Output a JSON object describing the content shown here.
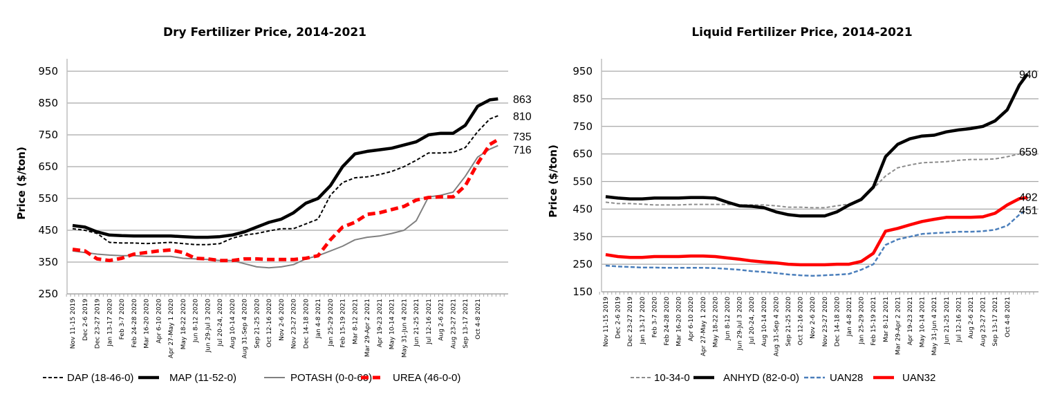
{
  "chart_data": [
    {
      "type": "line",
      "title": "Dry Fertilizer Price, 2014-2021",
      "xlabel": "",
      "ylabel": "Price ($/ton)",
      "ylim": [
        250,
        950
      ],
      "yticks": [
        250,
        350,
        450,
        550,
        650,
        750,
        850,
        950
      ],
      "grid": true,
      "legend_position": "bottom",
      "x_weeks": [
        0,
        3,
        6,
        9,
        12,
        15,
        18,
        21,
        24,
        27,
        30,
        33,
        36,
        39,
        42,
        45,
        48,
        51,
        54,
        57,
        60,
        63,
        66,
        69,
        72,
        75,
        78,
        81,
        84,
        87,
        90,
        93,
        96,
        99,
        102,
        104
      ],
      "xlim_weeks": [
        0,
        108
      ],
      "tick_weeks": [
        0,
        3,
        6,
        9,
        12,
        15,
        18,
        21,
        24,
        27,
        30,
        33,
        36,
        39,
        42,
        45,
        48,
        51,
        54,
        57,
        60,
        63,
        66,
        69,
        72,
        75,
        78,
        81,
        84,
        87,
        90,
        93,
        96,
        99
      ],
      "tick_labels": [
        "Nov 11-15 2019",
        "Dec 2-6 2019",
        "Dec 23-27 2019",
        "Jan 13-17 2020",
        "Feb 3-7 2020",
        "Feb 24-28 2020",
        "Mar 16-20 2020",
        "Apr 6-10 2020",
        "Apr 27-May 1 2020",
        "May 18-22 2020",
        "Jun 8-12 2020",
        "Jun 29-Jul 3 2020",
        "Jul 20-24, 2020",
        "Aug 10-14 2020",
        "Aug 31-Sep 4 2020",
        "Sep 21-25 2020",
        "Oct 12-16 2020",
        "Nov 2-6 2020",
        "Nov 23-27 2020",
        "Dec 14-18 2020",
        "Jan 4-8 2021",
        "Jan 25-29 2020",
        "Feb 15-19 2021",
        "Mar 8-12 2021",
        "Mar 29-Apr 2 2021",
        "Apr 19-23 2021",
        "May 10-14 2021",
        "May 31-Jun 4 2021",
        "Jun 21-25 2021",
        "Jul 12-16 2021",
        "Aug 2-6 2021",
        "Aug 23-27 2021",
        "Sep 13-17 2021",
        "Oct 4-8 2021"
      ],
      "series": [
        {
          "name": "DAP (18-46-0)",
          "color": "#000000",
          "style": "dashed-thin",
          "end_label": "810",
          "values": [
            455,
            450,
            440,
            412,
            410,
            410,
            408,
            410,
            412,
            408,
            405,
            405,
            408,
            425,
            435,
            440,
            448,
            455,
            455,
            470,
            485,
            560,
            600,
            615,
            618,
            625,
            635,
            650,
            670,
            693,
            693,
            695,
            710,
            760,
            800,
            810
          ]
        },
        {
          "name": "MAP (11-52-0)",
          "color": "#000000",
          "style": "solid-thick",
          "end_label": "863",
          "values": [
            465,
            460,
            445,
            435,
            433,
            432,
            432,
            432,
            432,
            430,
            428,
            428,
            430,
            435,
            445,
            460,
            475,
            485,
            505,
            535,
            550,
            590,
            650,
            690,
            698,
            703,
            708,
            718,
            728,
            750,
            755,
            755,
            780,
            840,
            860,
            863
          ]
        },
        {
          "name": "POTASH (0-0-60)",
          "color": "#808080",
          "style": "solid-thin",
          "end_label": "716",
          "values": [
            385,
            380,
            375,
            372,
            370,
            370,
            368,
            368,
            368,
            362,
            360,
            358,
            355,
            355,
            345,
            335,
            332,
            335,
            342,
            360,
            370,
            385,
            400,
            420,
            428,
            432,
            440,
            450,
            480,
            555,
            560,
            570,
            620,
            680,
            705,
            716
          ]
        },
        {
          "name": "UREA (46-0-0)",
          "color": "#ff0000",
          "style": "dashed-thick",
          "end_label": "735",
          "values": [
            390,
            385,
            360,
            355,
            362,
            375,
            380,
            385,
            388,
            380,
            362,
            360,
            355,
            355,
            360,
            360,
            358,
            358,
            358,
            362,
            370,
            420,
            460,
            475,
            500,
            505,
            515,
            525,
            545,
            553,
            555,
            555,
            590,
            660,
            720,
            735
          ]
        }
      ]
    },
    {
      "type": "line",
      "title": "Liquid Fertilizer Price, 2014-2021",
      "xlabel": "",
      "ylabel": "Price ($/ton)",
      "ylim": [
        150,
        950
      ],
      "yticks": [
        150,
        250,
        350,
        450,
        550,
        650,
        750,
        850,
        950
      ],
      "grid": true,
      "legend_position": "bottom",
      "x_weeks": [
        0,
        3,
        6,
        9,
        12,
        15,
        18,
        21,
        24,
        27,
        30,
        33,
        36,
        39,
        42,
        45,
        48,
        51,
        54,
        57,
        60,
        63,
        66,
        69,
        72,
        75,
        78,
        81,
        84,
        87,
        90,
        93,
        96,
        99,
        102,
        104
      ],
      "xlim_weeks": [
        0,
        108
      ],
      "tick_weeks": [
        0,
        3,
        6,
        9,
        12,
        15,
        18,
        21,
        24,
        27,
        30,
        33,
        36,
        39,
        42,
        45,
        48,
        51,
        54,
        57,
        60,
        63,
        66,
        69,
        72,
        75,
        78,
        81,
        84,
        87,
        90,
        93,
        96,
        99
      ],
      "tick_labels": [
        "Nov 11-15 2019",
        "Dec 2-6 2019",
        "Dec 23-27 2019",
        "Jan 13-17 2020",
        "Feb 3-7 2020",
        "Feb 24-28 2020",
        "Mar 16-20 2020",
        "Apr 6-10 2020",
        "Apr 27-May 1 2020",
        "May 18-22 2020",
        "Jun 8-12 2020",
        "Jun 29-Jul 3 2020",
        "Jul 20-24, 2020",
        "Aug 10-14 2020",
        "Aug 31-Sep 4 2020",
        "Sep 21-25 2020",
        "Oct 12-16 2020",
        "Nov 2-6 2020",
        "Nov 23-27 2020",
        "Dec 14-18 2020",
        "Jan 4-8 2021",
        "Jan 25-29 2020",
        "Feb 15-19 2021",
        "Mar 8-12 2021",
        "Mar 29-Apr 2 2021",
        "Apr 19-23 2021",
        "May 10-14 2021",
        "May 31-Jun 4 2021",
        "Jun 21-25 2021",
        "Jul 12-16 2021",
        "Aug 2-6 2021",
        "Aug 23-27 2021",
        "Sep 13-17 2021",
        "Oct 4-8 2021"
      ],
      "series": [
        {
          "name": "10-34-0",
          "color": "#8c8c8c",
          "style": "dashed-thin",
          "end_label": "659",
          "values": [
            475,
            470,
            470,
            468,
            465,
            465,
            465,
            467,
            467,
            467,
            467,
            465,
            465,
            465,
            462,
            457,
            457,
            455,
            455,
            462,
            468,
            488,
            525,
            570,
            600,
            610,
            618,
            620,
            622,
            627,
            630,
            630,
            632,
            640,
            650,
            659
          ]
        },
        {
          "name": "ANHYD (82-0-0)",
          "color": "#000000",
          "style": "solid-thick",
          "end_label": "940",
          "values": [
            495,
            490,
            487,
            487,
            490,
            490,
            490,
            492,
            492,
            490,
            475,
            462,
            460,
            455,
            440,
            430,
            425,
            425,
            425,
            440,
            465,
            485,
            530,
            640,
            685,
            705,
            715,
            718,
            730,
            737,
            742,
            750,
            770,
            810,
            900,
            940
          ]
        },
        {
          "name": "UAN28",
          "color": "#4a7ebb",
          "style": "dashed-mid",
          "end_label": "451",
          "values": [
            245,
            242,
            240,
            238,
            238,
            237,
            237,
            237,
            237,
            236,
            233,
            230,
            225,
            222,
            218,
            213,
            210,
            208,
            210,
            212,
            215,
            230,
            250,
            320,
            340,
            350,
            360,
            363,
            365,
            368,
            368,
            370,
            375,
            390,
            430,
            451
          ]
        },
        {
          "name": "UAN32",
          "color": "#ff0000",
          "style": "solid-thick",
          "end_label": "492",
          "values": [
            285,
            278,
            275,
            275,
            278,
            278,
            278,
            280,
            280,
            278,
            273,
            268,
            262,
            258,
            255,
            250,
            248,
            248,
            248,
            250,
            250,
            260,
            290,
            370,
            380,
            393,
            405,
            413,
            420,
            420,
            420,
            422,
            435,
            465,
            488,
            492
          ]
        }
      ]
    }
  ]
}
